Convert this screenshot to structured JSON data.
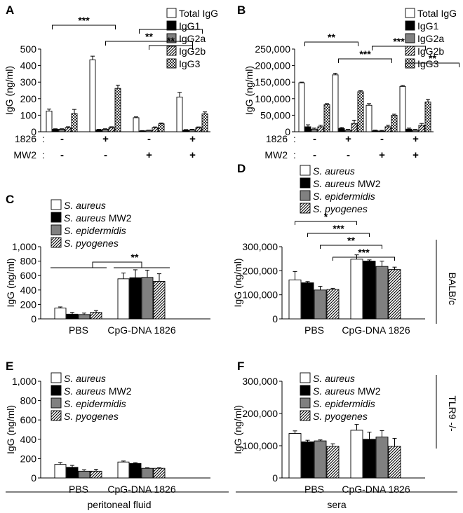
{
  "chart_data": [
    {
      "id": "A",
      "panel_label": "A",
      "type": "bar",
      "ylabel": "IgG (ng/ml)",
      "ylim": [
        0,
        500
      ],
      "yticks": [
        "0",
        "100",
        "200",
        "300",
        "400",
        "500"
      ],
      "series": [
        {
          "name": "Total IgG",
          "fill": "white"
        },
        {
          "name": "IgG1",
          "fill": "black"
        },
        {
          "name": "IgG2a",
          "fill": "gray"
        },
        {
          "name": "IgG2b",
          "fill": "hatch"
        },
        {
          "name": "IgG3",
          "fill": "check"
        }
      ],
      "groups": [
        {
          "values": [
            125,
            15,
            15,
            25,
            110
          ],
          "errors": [
            12,
            3,
            3,
            5,
            25
          ]
        },
        {
          "values": [
            435,
            12,
            15,
            25,
            262
          ],
          "errors": [
            22,
            3,
            3,
            5,
            20
          ]
        },
        {
          "values": [
            85,
            5,
            8,
            25,
            48
          ],
          "errors": [
            5,
            2,
            2,
            4,
            5
          ]
        },
        {
          "values": [
            210,
            10,
            12,
            25,
            108
          ],
          "errors": [
            28,
            3,
            3,
            4,
            12
          ]
        }
      ],
      "condition_rows": [
        {
          "label": "1826",
          "colon": ":",
          "values": [
            "-",
            "+",
            "-",
            "+"
          ]
        },
        {
          "label": "MW2",
          "colon": ":",
          "values": [
            "-",
            "-",
            "+",
            "+"
          ]
        }
      ],
      "significance": [
        {
          "text": "***",
          "from": 0,
          "to": 1,
          "level": 1
        },
        {
          "text": "**",
          "from": 1.45,
          "to": 3.45,
          "level": 2
        },
        {
          "text": "**",
          "from": 2,
          "to": 3,
          "level": 3
        },
        {
          "text": "**",
          "from": 2.45,
          "to": 3.45,
          "level": 4
        }
      ]
    },
    {
      "id": "B",
      "panel_label": "B",
      "type": "bar",
      "ylabel": "IgG (ng/ml)",
      "ylim": [
        0,
        250000
      ],
      "yticks": [
        "0",
        "50,000",
        "100,000",
        "150,000",
        "200,000",
        "250,000"
      ],
      "series": [
        {
          "name": "Total IgG",
          "fill": "white"
        },
        {
          "name": "IgG1",
          "fill": "black"
        },
        {
          "name": "IgG2a",
          "fill": "gray"
        },
        {
          "name": "IgG2b",
          "fill": "hatch"
        },
        {
          "name": "IgG3",
          "fill": "check"
        }
      ],
      "groups": [
        {
          "values": [
            148000,
            15000,
            8000,
            15000,
            82000
          ],
          "errors": [
            2000,
            6000,
            3000,
            5000,
            3000
          ]
        },
        {
          "values": [
            172000,
            10000,
            5000,
            25000,
            121000
          ],
          "errors": [
            5000,
            3000,
            2000,
            10000,
            3000
          ]
        },
        {
          "values": [
            80000,
            3000,
            2000,
            15000,
            50000
          ],
          "errors": [
            5000,
            2000,
            2000,
            5000,
            3000
          ]
        },
        {
          "values": [
            137000,
            8000,
            5000,
            20000,
            90000
          ],
          "errors": [
            3000,
            3000,
            2000,
            5000,
            8000
          ]
        }
      ],
      "condition_rows": [
        {
          "label": "1826",
          "colon": ":",
          "values": [
            "-",
            "+",
            "-",
            "+"
          ]
        },
        {
          "label": "MW2",
          "colon": ":",
          "values": [
            "-",
            "-",
            "+",
            "+"
          ]
        }
      ],
      "significance": [
        {
          "text": "**",
          "from": 0,
          "to": 1,
          "level": 1
        },
        {
          "text": "***",
          "from": 1,
          "to": 2,
          "level": 2
        },
        {
          "text": "***",
          "from": 2,
          "to": 3,
          "level": 3
        },
        {
          "text": "**",
          "from": 3,
          "to": 4,
          "level": 4
        }
      ]
    },
    {
      "id": "C",
      "panel_label": "C",
      "type": "bar",
      "ylabel": "IgG (ng/ml)",
      "ylim": [
        0,
        1000
      ],
      "yticks": [
        "0",
        "200",
        "400",
        "600",
        "800",
        "1,000"
      ],
      "categories": [
        "PBS",
        "CpG-DNA 1826"
      ],
      "series": [
        {
          "name": "S. aureus",
          "suffix": "",
          "fill": "white"
        },
        {
          "name": "S. aureus",
          "suffix": " MW2",
          "fill": "black"
        },
        {
          "name": "S. epidermidis",
          "suffix": "",
          "fill": "gray"
        },
        {
          "name": "S. pyogenes",
          "suffix": "",
          "fill": "hatch"
        }
      ],
      "groups": [
        {
          "values": [
            150,
            65,
            60,
            90
          ],
          "errors": [
            15,
            25,
            20,
            25
          ]
        },
        {
          "values": [
            555,
            570,
            575,
            520
          ],
          "errors": [
            80,
            110,
            100,
            105
          ]
        }
      ],
      "significance": [
        {
          "text": "**",
          "from": 0,
          "to": 1,
          "level": 1
        }
      ]
    },
    {
      "id": "D",
      "panel_label": "D",
      "type": "bar",
      "ylabel": "IgG (ng/ml)",
      "ylim": [
        0,
        300000
      ],
      "yticks": [
        "0",
        "100,000",
        "200,000",
        "300,000"
      ],
      "categories": [
        "PBS",
        "CpG-DNA 1826"
      ],
      "side_label": "BALB/c",
      "series": [
        {
          "name": "S. aureus",
          "suffix": "",
          "fill": "white"
        },
        {
          "name": "S. aureus",
          "suffix": " MW2",
          "fill": "black"
        },
        {
          "name": "S. epidermidis",
          "suffix": "",
          "fill": "gray"
        },
        {
          "name": "S. pyogenes",
          "suffix": "",
          "fill": "hatch"
        }
      ],
      "groups": [
        {
          "values": [
            162000,
            150000,
            120000,
            122000
          ],
          "errors": [
            35000,
            5000,
            15000,
            5000
          ]
        },
        {
          "values": [
            248000,
            240000,
            218000,
            205000
          ],
          "errors": [
            18000,
            5000,
            22000,
            10000
          ]
        }
      ],
      "significance": [
        {
          "text": "*",
          "from": 0,
          "to": 4,
          "level": 1
        },
        {
          "text": "***",
          "from": 1,
          "to": 5,
          "level": 2
        },
        {
          "text": "**",
          "from": 2,
          "to": 6,
          "level": 3
        },
        {
          "text": "***",
          "from": 3,
          "to": 7,
          "level": 4
        }
      ]
    },
    {
      "id": "E",
      "panel_label": "E",
      "type": "bar",
      "ylabel": "IgG (ng/ml)",
      "ylim": [
        0,
        1000
      ],
      "yticks": [
        "0",
        "200",
        "400",
        "600",
        "800",
        "1,000"
      ],
      "categories": [
        "PBS",
        "CpG-DNA 1826"
      ],
      "series": [
        {
          "name": "S. aureus",
          "suffix": "",
          "fill": "white"
        },
        {
          "name": "S. aureus",
          "suffix": " MW2",
          "fill": "black"
        },
        {
          "name": "S. epidermidis",
          "suffix": "",
          "fill": "gray"
        },
        {
          "name": "S. pyogenes",
          "suffix": "",
          "fill": "hatch"
        }
      ],
      "groups": [
        {
          "values": [
            140,
            110,
            70,
            70
          ],
          "errors": [
            20,
            20,
            15,
            20
          ]
        },
        {
          "values": [
            165,
            150,
            100,
            100
          ],
          "errors": [
            10,
            8,
            5,
            5
          ]
        }
      ],
      "significance": []
    },
    {
      "id": "F",
      "panel_label": "F",
      "type": "bar",
      "ylabel": "IgG (ng/ml)",
      "ylim": [
        0,
        300000
      ],
      "yticks": [
        "0",
        "100,000",
        "200,000",
        "300,000"
      ],
      "categories": [
        "PBS",
        "CpG-DNA 1826"
      ],
      "side_label": "TLR9 -/-",
      "series": [
        {
          "name": "S. aureus",
          "suffix": "",
          "fill": "white"
        },
        {
          "name": "S. aureus",
          "suffix": " MW2",
          "fill": "black"
        },
        {
          "name": "S. epidermidis",
          "suffix": "",
          "fill": "gray"
        },
        {
          "name": "S. pyogenes",
          "suffix": "",
          "fill": "hatch"
        }
      ],
      "groups": [
        {
          "values": [
            138000,
            112000,
            115000,
            98000
          ],
          "errors": [
            8000,
            5000,
            3000,
            8000
          ]
        },
        {
          "values": [
            148000,
            120000,
            127000,
            98000
          ],
          "errors": [
            18000,
            22000,
            20000,
            25000
          ]
        }
      ],
      "significance": []
    }
  ],
  "footer": {
    "left_label": "peritoneal fluid",
    "right_label": "sera"
  },
  "colors": {
    "gray": "#808080",
    "black": "#000000",
    "white": "#ffffff"
  }
}
